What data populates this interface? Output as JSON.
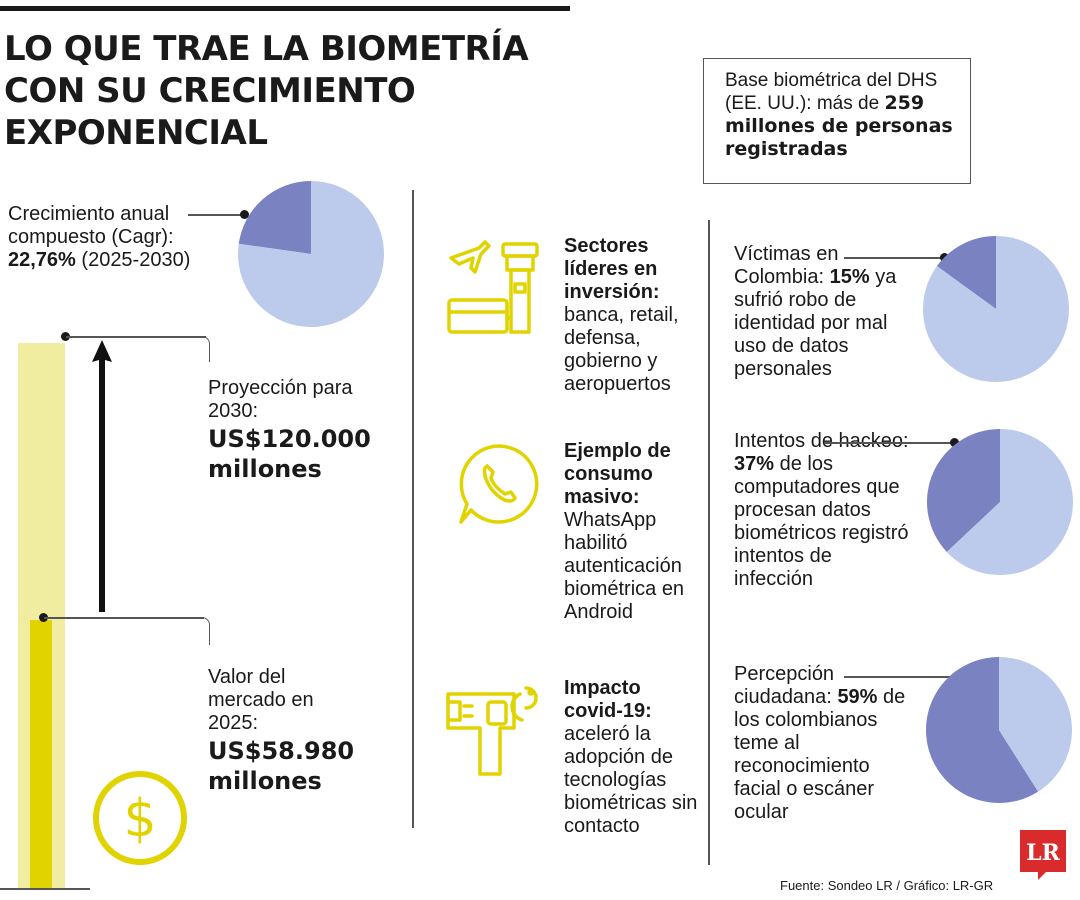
{
  "title": "LO QUE TRAE LA BIOMETRÍA CON SU CRECIMIENTO EXPONENCIAL",
  "box": {
    "text": "Base biométrica del DHS (EE. UU.): más de",
    "bold": "259 millones de personas registradas"
  },
  "cagr": {
    "line1": "Crecimiento anual compuesto (Cagr):",
    "value": "22,76%",
    "period": "(2025-2030)"
  },
  "projection": {
    "label": "Proyección para 2030:",
    "value": "US$120.000 millones"
  },
  "market": {
    "label": "Valor del mercado en 2025:",
    "value": "US$58.980 millones"
  },
  "sectors": [
    {
      "icon": "airport-icon",
      "title": "Sectores líderes en inversión:",
      "body": "banca, retail, defensa, gobierno y aeropuertos"
    },
    {
      "icon": "whatsapp-icon",
      "title": "Ejemplo de consumo masivo:",
      "body": "WhatsApp habilitó autenticación biométrica en Android"
    },
    {
      "icon": "thermometer-gun-icon",
      "title": "Impacto covid-19:",
      "body": "aceleró la adopción de tecnologías biométricas sin contacto"
    }
  ],
  "stats": [
    {
      "pre": "Víctimas en Colombia:",
      "bold": "15%",
      "post": "ya sufrió robo de identidad por mal uso de datos personales"
    },
    {
      "pre": "Intentos de hackeo:",
      "bold": "37%",
      "post": "de los computadores que procesan datos biométricos registró intentos de infección"
    },
    {
      "pre": "Percepción ciudadana:",
      "bold": "59%",
      "post": "de los colombianos teme al reconocimiento facial o escáner ocular"
    }
  ],
  "source": "Fuente: Sondeo LR / Gráfico: LR-GR",
  "logo_text": "LR",
  "colors": {
    "pie_light": "#bccbeb",
    "pie_dark": "#7a82c2",
    "bar_light": "#f0eca0",
    "bar_dark": "#e1d300",
    "icon_yellow": "#e1d300",
    "logo_red": "#d92b2b"
  },
  "chart_data": [
    {
      "type": "pie",
      "labels": [
        "Crecimiento anual compuesto (Cagr)",
        ""
      ],
      "values": [
        22.76,
        77.24
      ]
    },
    {
      "type": "bar",
      "categories": [
        "2025",
        "2030"
      ],
      "values": [
        58980,
        120000
      ],
      "ylabel": "US$ millones"
    },
    {
      "type": "pie",
      "labels": [
        "Víctimas en Colombia",
        ""
      ],
      "values": [
        15,
        85
      ]
    },
    {
      "type": "pie",
      "labels": [
        "Intentos de hackeo",
        ""
      ],
      "values": [
        37,
        63
      ]
    },
    {
      "type": "pie",
      "labels": [
        "Percepción ciudadana",
        ""
      ],
      "values": [
        59,
        41
      ]
    }
  ]
}
